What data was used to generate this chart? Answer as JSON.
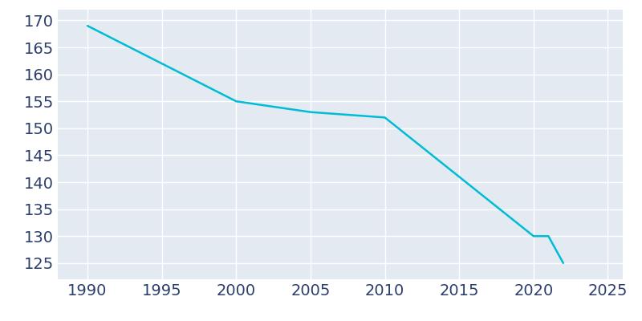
{
  "years": [
    1990,
    2000,
    2005,
    2010,
    2020,
    2021,
    2022
  ],
  "population": [
    169,
    155,
    153,
    152,
    130,
    130,
    125
  ],
  "line_color": "#00BCD4",
  "plot_bg_color": "#E3EAF2",
  "fig_bg_color": "#ffffff",
  "grid_color": "#ffffff",
  "tick_color": "#2C3E6B",
  "xlim": [
    1988,
    2026
  ],
  "ylim": [
    122,
    172
  ],
  "xticks": [
    1990,
    1995,
    2000,
    2005,
    2010,
    2015,
    2020,
    2025
  ],
  "yticks": [
    125,
    130,
    135,
    140,
    145,
    150,
    155,
    160,
    165,
    170
  ],
  "tick_fontsize": 14
}
